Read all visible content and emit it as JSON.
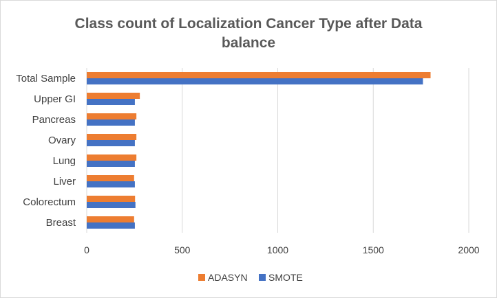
{
  "chart_data": {
    "type": "bar",
    "orientation": "horizontal",
    "title_lines": [
      "Class count of Localization Cancer Type after Data",
      "balance"
    ],
    "categories": [
      "Total Sample",
      "Upper GI",
      "Pancreas",
      "Ovary",
      "Lung",
      "Liver",
      "Colorectum",
      "Breast"
    ],
    "series": [
      {
        "name": "ADASYN",
        "color": "#ed7d31",
        "values": [
          1800,
          278,
          260,
          260,
          260,
          248,
          253,
          248
        ]
      },
      {
        "name": "SMOTE",
        "color": "#4472c4",
        "values": [
          1760,
          252,
          252,
          252,
          252,
          252,
          255,
          252
        ]
      }
    ],
    "xlim": [
      0,
      2000
    ],
    "xticks": [
      "0",
      "500",
      "1000",
      "1500",
      "2000"
    ],
    "xtick_values": [
      0,
      500,
      1000,
      1500,
      2000
    ],
    "grid": "vertical",
    "legend_position": "bottom"
  }
}
